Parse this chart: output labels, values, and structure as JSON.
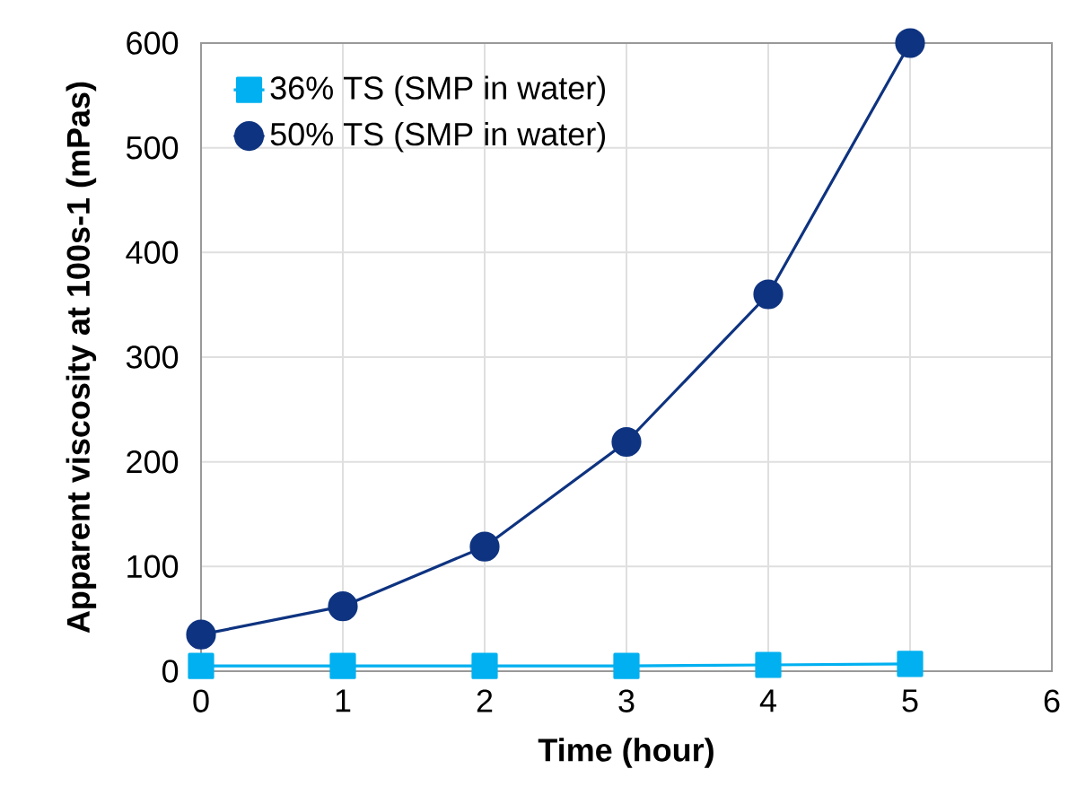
{
  "chart_data": {
    "type": "line",
    "xlabel": "Time (hour)",
    "ylabel": "Apparent viscosity at 100s-1 (mPas)",
    "x": [
      0,
      1,
      2,
      3,
      4,
      5
    ],
    "series": [
      {
        "name": "36% TS (SMP in water)",
        "color": "#00b0f0",
        "marker": "square",
        "values": [
          5,
          5,
          5,
          5,
          6,
          7
        ]
      },
      {
        "name": "50% TS (SMP in water)",
        "color": "#0e3380",
        "marker": "circle",
        "values": [
          35,
          62,
          119,
          219,
          360,
          600
        ]
      }
    ],
    "xlim": [
      0,
      6
    ],
    "xticks": [
      0,
      1,
      2,
      3,
      4,
      5,
      6
    ],
    "ylim": [
      0,
      600
    ],
    "yticks": [
      0,
      100,
      200,
      300,
      400,
      500,
      600
    ],
    "grid": true,
    "legend": "top left",
    "line_style": "solid"
  }
}
